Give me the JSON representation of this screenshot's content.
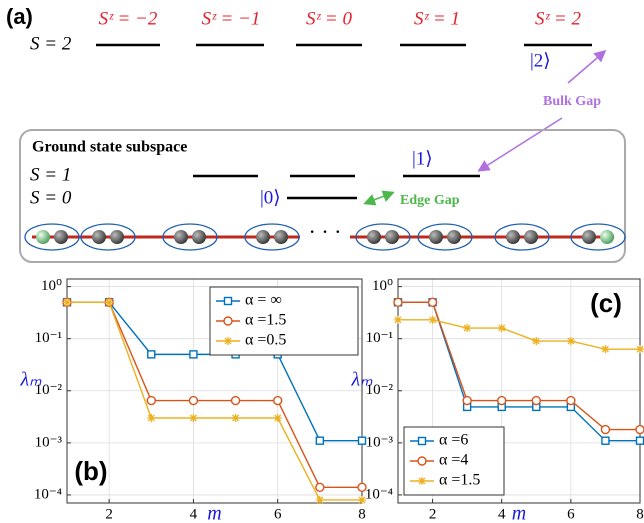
{
  "diagram": {
    "panel_label": "(a)",
    "top_level": "S = 2",
    "sz_labels": [
      "Sᶻ = −2",
      "Sᶻ = −1",
      "Sᶻ = 0",
      "Sᶻ = 1",
      "Sᶻ = 2"
    ],
    "ket_2": "|2⟩",
    "bulk_gap": "Bulk Gap",
    "box_title": "Ground state subspace",
    "level_1": "S = 1",
    "level_0": "S = 0",
    "ket_1": "|1⟩",
    "ket_0": "|0⟩",
    "edge_gap": "Edge Gap"
  },
  "chart_data": [
    {
      "type": "line",
      "panel_label": "(b)",
      "xlabel": "m",
      "ylabel": "λₘ",
      "label_color": "#1a1adb",
      "x": [
        1,
        2,
        3,
        4,
        5,
        6,
        7,
        8
      ],
      "xlim": [
        1,
        8
      ],
      "xticks": [
        2,
        4,
        6,
        8
      ],
      "yscale": "log",
      "ylim": [
        7e-05,
        1.4
      ],
      "yticks": [
        {
          "value": 1,
          "label": "10⁰"
        },
        {
          "value": 0.1,
          "label": "10⁻¹"
        },
        {
          "value": 0.01,
          "label": "10⁻²"
        },
        {
          "value": 0.001,
          "label": "10⁻³"
        },
        {
          "value": 0.0001,
          "label": "10⁻⁴"
        }
      ],
      "grid": true,
      "legend": "upper right",
      "series": [
        {
          "name": "α = ∞",
          "color": "#0072bd",
          "marker": "square",
          "values": [
            0.5,
            0.5,
            0.05,
            0.05,
            0.05,
            0.05,
            0.0011,
            0.0011
          ]
        },
        {
          "name": "α =1.5",
          "color": "#d95319",
          "marker": "circle",
          "values": [
            0.5,
            0.5,
            0.0065,
            0.0065,
            0.0065,
            0.0065,
            0.00014,
            0.00014
          ]
        },
        {
          "name": "α =0.5",
          "color": "#edb120",
          "marker": "asterisk",
          "values": [
            0.5,
            0.5,
            0.003,
            0.003,
            0.003,
            0.003,
            8e-05,
            8e-05
          ]
        }
      ]
    },
    {
      "type": "line",
      "panel_label": "(c)",
      "xlabel": "m",
      "ylabel": "λₘ",
      "label_color": "#1a1adb",
      "x": [
        1,
        2,
        3,
        4,
        5,
        6,
        7,
        8
      ],
      "xlim": [
        1,
        8
      ],
      "xticks": [
        2,
        4,
        6,
        8
      ],
      "yscale": "log",
      "ylim": [
        7e-05,
        1.4
      ],
      "yticks": [
        {
          "value": 1,
          "label": "10⁰"
        },
        {
          "value": 0.1,
          "label": "10⁻¹"
        },
        {
          "value": 0.01,
          "label": "10⁻²"
        },
        {
          "value": 0.001,
          "label": "10⁻³"
        },
        {
          "value": 0.0001,
          "label": "10⁻⁴"
        }
      ],
      "grid": true,
      "legend": "lower left",
      "series": [
        {
          "name": "α =6",
          "color": "#0072bd",
          "marker": "square",
          "values": [
            0.5,
            0.5,
            0.0049,
            0.0049,
            0.0049,
            0.0049,
            0.0011,
            0.0011
          ]
        },
        {
          "name": "α =4",
          "color": "#d95319",
          "marker": "circle",
          "values": [
            0.5,
            0.5,
            0.0065,
            0.0065,
            0.0065,
            0.0065,
            0.0018,
            0.0018
          ]
        },
        {
          "name": "α =1.5",
          "color": "#edb120",
          "marker": "asterisk",
          "values": [
            0.23,
            0.23,
            0.16,
            0.16,
            0.09,
            0.09,
            0.063,
            0.063
          ]
        }
      ]
    }
  ]
}
